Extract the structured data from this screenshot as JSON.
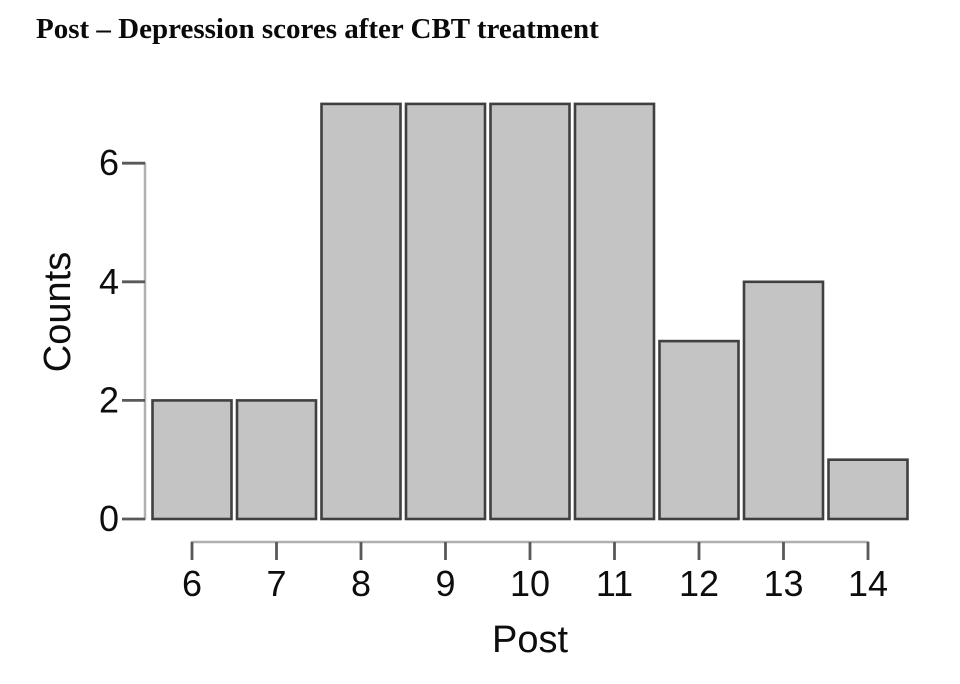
{
  "chart_data": {
    "type": "bar",
    "title": "Post – Depression scores after CBT treatment",
    "xlabel": "Post",
    "ylabel": "Counts",
    "categories": [
      6,
      7,
      8,
      9,
      10,
      11,
      12,
      13,
      14
    ],
    "values": [
      2,
      2,
      7,
      7,
      7,
      7,
      3,
      4,
      1
    ],
    "yticks": [
      0,
      2,
      4,
      6
    ],
    "ylim": [
      0,
      7
    ],
    "grid": false,
    "legend": null,
    "colors": {
      "bar_fill": "#c4c4c4",
      "bar_stroke": "#404040",
      "spine": "#b0b0b0",
      "tick": "#595959",
      "text": "#0d0d0d",
      "background": "#ffffff"
    }
  }
}
